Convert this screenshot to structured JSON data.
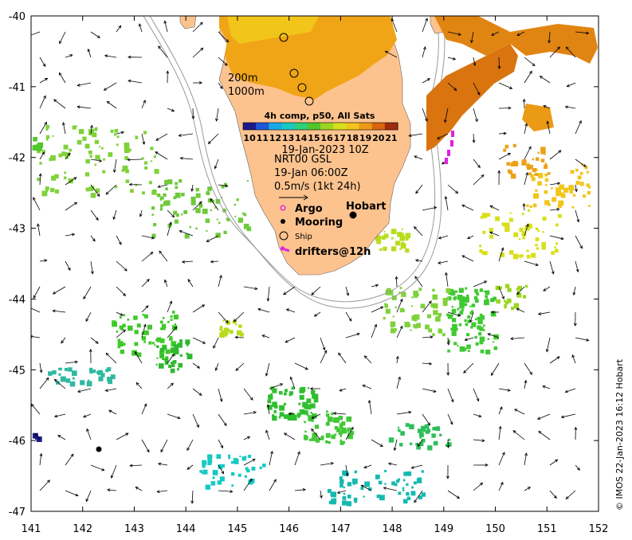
{
  "map": {
    "x_range": [
      141,
      152
    ],
    "y_range": [
      -47,
      -40
    ],
    "x_ticks": [
      "141",
      "142",
      "143",
      "144",
      "145",
      "146",
      "147",
      "148",
      "149",
      "150",
      "151",
      "152"
    ],
    "y_ticks": [
      "-40",
      "-41",
      "-42",
      "-43",
      "-44",
      "-45",
      "-46",
      "-47"
    ],
    "land_color": "#fdc38f",
    "isobath_color": "#9a9a9a"
  },
  "isobaths": {
    "label_200": "200m",
    "label_1000": "1000m"
  },
  "colorbar": {
    "title": "4h comp, p50, All Sats",
    "ticks": [
      "10",
      "11",
      "12",
      "13",
      "14",
      "15",
      "16",
      "17",
      "18",
      "19",
      "20",
      "21"
    ],
    "date": "19-Jan-2023 10Z",
    "colors": [
      "#1a1a8c",
      "#1f56d6",
      "#1aa8e8",
      "#16c9c4",
      "#2fd07a",
      "#4fc62a",
      "#9bd620",
      "#d8e019",
      "#f2c51a",
      "#eb9a16",
      "#d9650e",
      "#a02b0e"
    ]
  },
  "currents": {
    "product": "NRT00 GSL",
    "time": "19-Jan 06:00Z",
    "scale": "0.5m/s (1kt 24h)"
  },
  "legend": {
    "argo": "Argo",
    "mooring": "Mooring",
    "ship": "Ship",
    "drifters": "drifters@12h"
  },
  "place": {
    "hobart": "Hobart"
  },
  "credit": "© IMOS 22-Jan-2023 16:12 Hobart"
}
